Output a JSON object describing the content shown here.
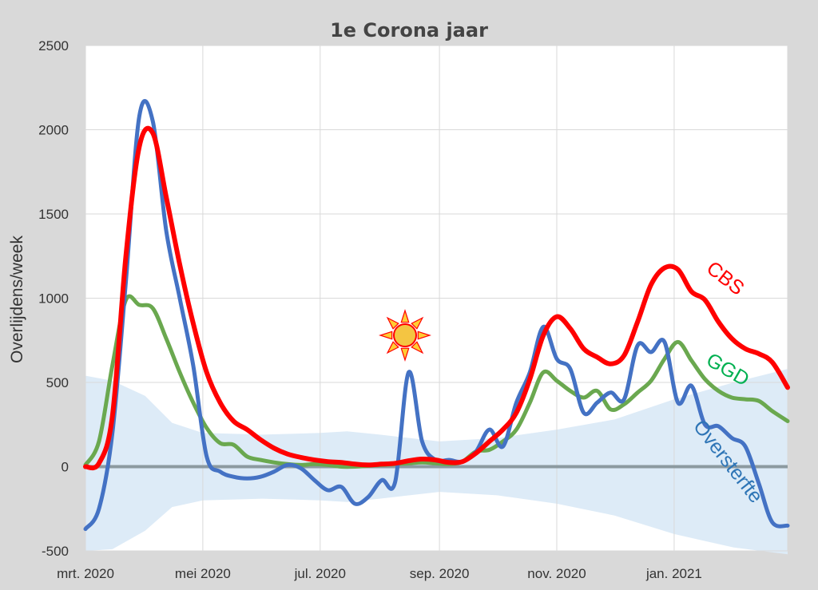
{
  "chart_data": {
    "type": "line",
    "title": "1e Corona jaar",
    "xlabel": "",
    "ylabel": "Overlijdens/week",
    "ylim": [
      -500,
      2500
    ],
    "yticks": [
      -500,
      0,
      500,
      1000,
      1500,
      2000,
      2500
    ],
    "xlim": [
      "2020-03-01",
      "2021-03-01"
    ],
    "xticks": [
      {
        "label": "mrt. 2020",
        "date": "2020-03-01"
      },
      {
        "label": "mei 2020",
        "date": "2020-05-01"
      },
      {
        "label": "jul. 2020",
        "date": "2020-07-01"
      },
      {
        "label": "sep. 2020",
        "date": "2020-09-01"
      },
      {
        "label": "nov. 2020",
        "date": "2020-11-01"
      },
      {
        "label": "jan. 2021",
        "date": "2021-01-01"
      }
    ],
    "grid": true,
    "annotation_icon": "sun-icon",
    "series": [
      {
        "name": "CBS",
        "color": "#ff0000",
        "points": [
          [
            "2020-03-01",
            0
          ],
          [
            "2020-03-08",
            20
          ],
          [
            "2020-03-15",
            300
          ],
          [
            "2020-03-22",
            1250
          ],
          [
            "2020-03-29",
            1900
          ],
          [
            "2020-04-05",
            1980
          ],
          [
            "2020-04-12",
            1600
          ],
          [
            "2020-04-19",
            1200
          ],
          [
            "2020-04-26",
            850
          ],
          [
            "2020-05-03",
            560
          ],
          [
            "2020-05-10",
            380
          ],
          [
            "2020-05-17",
            270
          ],
          [
            "2020-05-24",
            220
          ],
          [
            "2020-05-31",
            160
          ],
          [
            "2020-06-07",
            110
          ],
          [
            "2020-06-14",
            75
          ],
          [
            "2020-06-21",
            55
          ],
          [
            "2020-06-28",
            40
          ],
          [
            "2020-07-05",
            30
          ],
          [
            "2020-07-12",
            25
          ],
          [
            "2020-07-19",
            15
          ],
          [
            "2020-07-26",
            10
          ],
          [
            "2020-08-02",
            15
          ],
          [
            "2020-08-09",
            20
          ],
          [
            "2020-08-16",
            35
          ],
          [
            "2020-08-23",
            45
          ],
          [
            "2020-08-30",
            40
          ],
          [
            "2020-09-06",
            25
          ],
          [
            "2020-09-13",
            30
          ],
          [
            "2020-09-20",
            80
          ],
          [
            "2020-09-27",
            150
          ],
          [
            "2020-10-04",
            220
          ],
          [
            "2020-10-11",
            320
          ],
          [
            "2020-10-18",
            520
          ],
          [
            "2020-10-25",
            780
          ],
          [
            "2020-11-01",
            890
          ],
          [
            "2020-11-08",
            820
          ],
          [
            "2020-11-15",
            700
          ],
          [
            "2020-11-22",
            650
          ],
          [
            "2020-11-29",
            610
          ],
          [
            "2020-12-06",
            660
          ],
          [
            "2020-12-13",
            860
          ],
          [
            "2020-12-20",
            1080
          ],
          [
            "2020-12-27",
            1180
          ],
          [
            "2021-01-03",
            1170
          ],
          [
            "2021-01-10",
            1040
          ],
          [
            "2021-01-17",
            990
          ],
          [
            "2021-01-24",
            860
          ],
          [
            "2021-01-31",
            760
          ],
          [
            "2021-02-07",
            700
          ],
          [
            "2021-02-14",
            670
          ],
          [
            "2021-02-21",
            620
          ],
          [
            "2021-03-01",
            470
          ]
        ]
      },
      {
        "name": "GGD",
        "color": "#6aa84f",
        "points": [
          [
            "2020-03-01",
            10
          ],
          [
            "2020-03-08",
            150
          ],
          [
            "2020-03-15",
            600
          ],
          [
            "2020-03-22",
            990
          ],
          [
            "2020-03-29",
            960
          ],
          [
            "2020-04-05",
            940
          ],
          [
            "2020-04-12",
            760
          ],
          [
            "2020-04-19",
            560
          ],
          [
            "2020-04-26",
            380
          ],
          [
            "2020-05-03",
            230
          ],
          [
            "2020-05-10",
            140
          ],
          [
            "2020-05-17",
            130
          ],
          [
            "2020-05-24",
            60
          ],
          [
            "2020-05-31",
            40
          ],
          [
            "2020-06-07",
            25
          ],
          [
            "2020-06-14",
            15
          ],
          [
            "2020-06-21",
            10
          ],
          [
            "2020-06-28",
            15
          ],
          [
            "2020-07-05",
            10
          ],
          [
            "2020-07-12",
            0
          ],
          [
            "2020-07-19",
            0
          ],
          [
            "2020-07-26",
            5
          ],
          [
            "2020-08-02",
            10
          ],
          [
            "2020-08-09",
            15
          ],
          [
            "2020-08-16",
            20
          ],
          [
            "2020-08-23",
            25
          ],
          [
            "2020-08-30",
            20
          ],
          [
            "2020-09-06",
            15
          ],
          [
            "2020-09-13",
            30
          ],
          [
            "2020-09-20",
            90
          ],
          [
            "2020-09-27",
            100
          ],
          [
            "2020-10-04",
            150
          ],
          [
            "2020-10-11",
            220
          ],
          [
            "2020-10-18",
            380
          ],
          [
            "2020-10-25",
            560
          ],
          [
            "2020-11-01",
            510
          ],
          [
            "2020-11-08",
            450
          ],
          [
            "2020-11-15",
            410
          ],
          [
            "2020-11-22",
            450
          ],
          [
            "2020-11-29",
            340
          ],
          [
            "2020-12-06",
            370
          ],
          [
            "2020-12-13",
            440
          ],
          [
            "2020-12-20",
            510
          ],
          [
            "2020-12-27",
            640
          ],
          [
            "2021-01-03",
            740
          ],
          [
            "2021-01-10",
            630
          ],
          [
            "2021-01-17",
            520
          ],
          [
            "2021-01-24",
            450
          ],
          [
            "2021-01-31",
            410
          ],
          [
            "2021-02-07",
            400
          ],
          [
            "2021-02-14",
            390
          ],
          [
            "2021-02-21",
            330
          ],
          [
            "2021-03-01",
            270
          ]
        ]
      },
      {
        "name": "Oversterfte",
        "color": "#4472c4",
        "points": [
          [
            "2020-03-01",
            -370
          ],
          [
            "2020-03-08",
            -250
          ],
          [
            "2020-03-15",
            200
          ],
          [
            "2020-03-22",
            1100
          ],
          [
            "2020-03-29",
            2080
          ],
          [
            "2020-04-05",
            2050
          ],
          [
            "2020-04-12",
            1400
          ],
          [
            "2020-04-19",
            1000
          ],
          [
            "2020-04-26",
            600
          ],
          [
            "2020-05-03",
            60
          ],
          [
            "2020-05-10",
            -30
          ],
          [
            "2020-05-17",
            -60
          ],
          [
            "2020-05-24",
            -70
          ],
          [
            "2020-05-31",
            -60
          ],
          [
            "2020-06-07",
            -30
          ],
          [
            "2020-06-14",
            10
          ],
          [
            "2020-06-21",
            -10
          ],
          [
            "2020-06-28",
            -80
          ],
          [
            "2020-07-05",
            -140
          ],
          [
            "2020-07-12",
            -120
          ],
          [
            "2020-07-19",
            -220
          ],
          [
            "2020-07-26",
            -180
          ],
          [
            "2020-08-02",
            -80
          ],
          [
            "2020-08-09",
            -90
          ],
          [
            "2020-08-16",
            560
          ],
          [
            "2020-08-23",
            150
          ],
          [
            "2020-08-30",
            40
          ],
          [
            "2020-09-06",
            40
          ],
          [
            "2020-09-13",
            30
          ],
          [
            "2020-09-20",
            90
          ],
          [
            "2020-09-27",
            220
          ],
          [
            "2020-10-04",
            120
          ],
          [
            "2020-10-11",
            380
          ],
          [
            "2020-10-18",
            560
          ],
          [
            "2020-10-25",
            830
          ],
          [
            "2020-11-01",
            640
          ],
          [
            "2020-11-08",
            580
          ],
          [
            "2020-11-15",
            320
          ],
          [
            "2020-11-22",
            380
          ],
          [
            "2020-11-29",
            440
          ],
          [
            "2020-12-06",
            400
          ],
          [
            "2020-12-13",
            720
          ],
          [
            "2020-12-20",
            680
          ],
          [
            "2020-12-27",
            740
          ],
          [
            "2021-01-03",
            380
          ],
          [
            "2021-01-10",
            480
          ],
          [
            "2021-01-17",
            250
          ],
          [
            "2021-01-24",
            240
          ],
          [
            "2021-01-31",
            170
          ],
          [
            "2021-02-07",
            120
          ],
          [
            "2021-02-14",
            -100
          ],
          [
            "2021-02-21",
            -330
          ],
          [
            "2021-03-01",
            -350
          ]
        ]
      }
    ],
    "band": {
      "upper": [
        [
          "2020-03-01",
          540
        ],
        [
          "2020-03-15",
          510
        ],
        [
          "2020-04-01",
          420
        ],
        [
          "2020-04-15",
          260
        ],
        [
          "2020-05-01",
          200
        ],
        [
          "2020-06-01",
          190
        ],
        [
          "2020-07-01",
          200
        ],
        [
          "2020-07-15",
          210
        ],
        [
          "2020-08-01",
          190
        ],
        [
          "2020-09-01",
          150
        ],
        [
          "2020-10-01",
          170
        ],
        [
          "2020-11-01",
          220
        ],
        [
          "2020-12-01",
          280
        ],
        [
          "2021-01-01",
          400
        ],
        [
          "2021-02-01",
          500
        ],
        [
          "2021-03-01",
          580
        ]
      ],
      "lower": [
        [
          "2020-03-01",
          -500
        ],
        [
          "2020-03-15",
          -490
        ],
        [
          "2020-04-01",
          -380
        ],
        [
          "2020-04-15",
          -240
        ],
        [
          "2020-05-01",
          -200
        ],
        [
          "2020-06-01",
          -190
        ],
        [
          "2020-07-01",
          -200
        ],
        [
          "2020-07-15",
          -210
        ],
        [
          "2020-08-01",
          -190
        ],
        [
          "2020-09-01",
          -150
        ],
        [
          "2020-10-01",
          -170
        ],
        [
          "2020-11-01",
          -220
        ],
        [
          "2020-12-01",
          -290
        ],
        [
          "2021-01-01",
          -400
        ],
        [
          "2021-02-01",
          -480
        ],
        [
          "2021-03-01",
          -520
        ]
      ]
    }
  }
}
